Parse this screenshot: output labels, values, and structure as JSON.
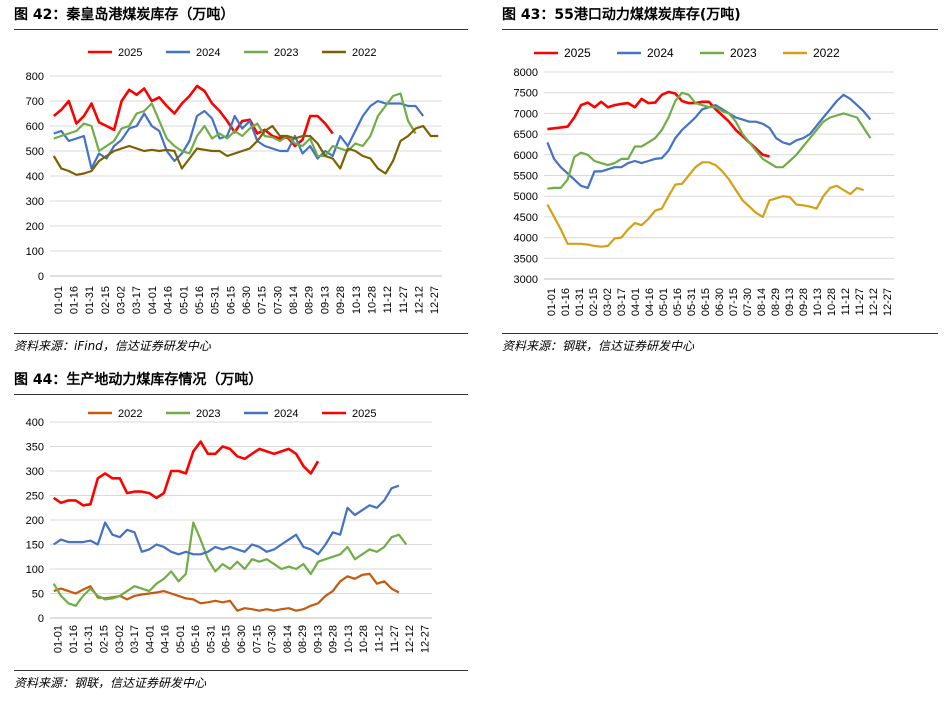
{
  "colors": {
    "2025": "#ff0000",
    "2024": "#4472c4",
    "2023": "#70ad47",
    "2022_p1": "#7f6000",
    "2022_p2": "#d4a017",
    "2022_p3": "#c55a11"
  },
  "panels": [
    {
      "title": "图 42：秦皇岛港煤炭库存（万吨）",
      "source": "资料来源：iFind，信达证券研发中心",
      "chart_data": {
        "type": "line",
        "x_ticks": [
          "01-01",
          "01-16",
          "01-31",
          "02-15",
          "03-02",
          "03-17",
          "04-01",
          "04-16",
          "05-01",
          "05-16",
          "05-31",
          "06-15",
          "06-30",
          "07-15",
          "07-30",
          "08-14",
          "08-29",
          "09-13",
          "09-28",
          "10-13",
          "10-28",
          "11-12",
          "11-27",
          "12-12",
          "12-27"
        ],
        "y_ticks": [
          "0",
          "100",
          "200",
          "300",
          "400",
          "500",
          "600",
          "700",
          "800"
        ],
        "ylim": [
          0,
          800
        ],
        "legend_position": "top",
        "series": [
          {
            "name": "2025",
            "color_key": "2025",
            "values": [
              640,
              665,
              700,
              610,
              640,
              690,
              615,
              600,
              585,
              700,
              745,
              725,
              750,
              700,
              715,
              680,
              650,
              690,
              720,
              760,
              740,
              690,
              660,
              620,
              575,
              620,
              625,
              570,
              585,
              560,
              550,
              555,
              520,
              545,
              640,
              640,
              610,
              570
            ]
          },
          {
            "name": "2024",
            "color_key": "2024",
            "values": [
              570,
              580,
              540,
              550,
              560,
              430,
              490,
              470,
              520,
              545,
              590,
              600,
              650,
              600,
              580,
              500,
              460,
              490,
              540,
              640,
              660,
              630,
              550,
              560,
              640,
              590,
              620,
              540,
              520,
              510,
              500,
              500,
              560,
              490,
              520,
              470,
              500,
              480,
              560,
              520,
              580,
              640,
              680,
              700,
              690,
              690,
              690,
              680,
              680,
              640
            ]
          },
          {
            "name": "2023",
            "color_key": "2023",
            "values": [
              550,
              560,
              570,
              580,
              610,
              600,
              500,
              520,
              540,
              590,
              600,
              650,
              660,
              690,
              620,
              550,
              520,
              500,
              490,
              560,
              600,
              550,
              570,
              550,
              580,
              560,
              590,
              610,
              560,
              555,
              540,
              560,
              530,
              520,
              550,
              480,
              480,
              520,
              510,
              500,
              530,
              520,
              560,
              640,
              680,
              720,
              730,
              620,
              570
            ]
          },
          {
            "name": "2022",
            "color_key": "2022_p1",
            "values": [
              480,
              430,
              420,
              405,
              410,
              420,
              460,
              480,
              500,
              510,
              520,
              510,
              500,
              505,
              500,
              505,
              500,
              430,
              470,
              510,
              505,
              500,
              500,
              480,
              490,
              500,
              510,
              540,
              580,
              600,
              560,
              560,
              550,
              560,
              560,
              530,
              480,
              470,
              430,
              510,
              500,
              480,
              470,
              430,
              410,
              460,
              540,
              560,
              590,
              600,
              560,
              560
            ]
          }
        ]
      }
    },
    {
      "title": "图 43：55港口动力煤煤炭库存(万吨)",
      "source": "资料来源：钢联，信达证券研发中心",
      "chart_data": {
        "type": "line",
        "x_ticks": [
          "01-01",
          "01-16",
          "01-31",
          "02-15",
          "03-02",
          "03-17",
          "04-01",
          "04-16",
          "05-01",
          "05-16",
          "05-31",
          "06-15",
          "06-30",
          "07-15",
          "07-30",
          "08-14",
          "08-29",
          "09-13",
          "09-28",
          "10-13",
          "10-28",
          "11-12",
          "11-27",
          "12-12",
          "12-27"
        ],
        "y_ticks": [
          "3000",
          "3500",
          "4000",
          "4500",
          "5000",
          "5500",
          "6000",
          "6500",
          "7000",
          "7500",
          "8000"
        ],
        "ylim": [
          3000,
          8000
        ],
        "legend_position": "top",
        "series": [
          {
            "name": "2025",
            "color_key": "2025",
            "values": [
              6620,
              6640,
              6660,
              6680,
              6900,
              7200,
              7260,
              7150,
              7280,
              7150,
              7200,
              7230,
              7250,
              7150,
              7350,
              7250,
              7260,
              7450,
              7520,
              7480,
              7300,
              7250,
              7250,
              7280,
              7280,
              7100,
              6950,
              6800,
              6600,
              6450,
              6300,
              6150,
              6000,
              5960
            ]
          },
          {
            "name": "2024",
            "color_key": "2024",
            "values": [
              6300,
              5900,
              5700,
              5550,
              5400,
              5250,
              5200,
              5600,
              5600,
              5650,
              5700,
              5700,
              5800,
              5850,
              5800,
              5850,
              5900,
              5920,
              6100,
              6400,
              6600,
              6750,
              6900,
              7100,
              7150,
              7200,
              7100,
              7000,
              6900,
              6850,
              6800,
              6800,
              6750,
              6650,
              6400,
              6300,
              6250,
              6350,
              6400,
              6500,
              6700,
              6900,
              7100,
              7300,
              7450,
              7350,
              7200,
              7050,
              6850
            ]
          },
          {
            "name": "2023",
            "color_key": "2023",
            "values": [
              5180,
              5200,
              5200,
              5400,
              5950,
              6050,
              6000,
              5850,
              5800,
              5750,
              5800,
              5900,
              5900,
              6200,
              6200,
              6300,
              6400,
              6600,
              6900,
              7300,
              7500,
              7450,
              7250,
              7200,
              7150,
              7150,
              7050,
              7000,
              6800,
              6500,
              6300,
              6100,
              5900,
              5800,
              5700,
              5700,
              5850,
              6000,
              6200,
              6400,
              6600,
              6800,
              6900,
              6950,
              7000,
              6950,
              6900,
              6650,
              6400
            ]
          },
          {
            "name": "2022",
            "color_key": "2022_p2",
            "values": [
              4800,
              4500,
              4200,
              3850,
              3850,
              3850,
              3830,
              3800,
              3780,
              3800,
              3980,
              4000,
              4200,
              4350,
              4300,
              4450,
              4650,
              4700,
              5000,
              5280,
              5300,
              5500,
              5700,
              5820,
              5820,
              5750,
              5600,
              5400,
              5150,
              4900,
              4750,
              4600,
              4500,
              4900,
              4950,
              5000,
              4980,
              4800,
              4780,
              4750,
              4700,
              5000,
              5200,
              5250,
              5150,
              5050,
              5200,
              5150
            ]
          }
        ]
      }
    },
    {
      "title": "图 44：生产地动力煤库存情况（万吨）",
      "source": "资料来源：钢联，信达证券研发中心",
      "chart_data": {
        "type": "line",
        "x_ticks": [
          "01-01",
          "01-16",
          "01-31",
          "02-15",
          "03-02",
          "03-17",
          "04-01",
          "04-16",
          "05-01",
          "05-16",
          "05-31",
          "06-15",
          "06-30",
          "07-15",
          "07-30",
          "08-14",
          "08-29",
          "09-13",
          "09-28",
          "10-13",
          "10-28",
          "11-12",
          "11-27",
          "12-12",
          "12-27"
        ],
        "y_ticks": [
          "0",
          "50",
          "100",
          "150",
          "200",
          "250",
          "300",
          "350",
          "400"
        ],
        "ylim": [
          0,
          400
        ],
        "legend_position": "top",
        "series": [
          {
            "name": "2022",
            "color_key": "2022_p3",
            "values": [
              55,
              60,
              55,
              50,
              58,
              65,
              42,
              40,
              42,
              45,
              38,
              45,
              48,
              50,
              52,
              55,
              50,
              45,
              40,
              38,
              30,
              32,
              35,
              32,
              35,
              15,
              20,
              18,
              15,
              18,
              15,
              18,
              20,
              15,
              18,
              25,
              30,
              45,
              55,
              75,
              85,
              80,
              88,
              90,
              70,
              75,
              60,
              52
            ]
          },
          {
            "name": "2023",
            "color_key": "2023",
            "values": [
              70,
              45,
              30,
              25,
              45,
              60,
              45,
              38,
              40,
              45,
              55,
              65,
              60,
              55,
              70,
              80,
              95,
              75,
              90,
              195,
              160,
              120,
              95,
              110,
              100,
              115,
              100,
              120,
              115,
              120,
              110,
              100,
              105,
              100,
              110,
              90,
              115,
              120,
              125,
              130,
              145,
              120,
              130,
              140,
              135,
              145,
              165,
              170,
              150
            ]
          },
          {
            "name": "2024",
            "color_key": "2024",
            "values": [
              150,
              160,
              155,
              155,
              155,
              158,
              150,
              195,
              170,
              165,
              180,
              175,
              135,
              140,
              150,
              145,
              135,
              130,
              135,
              130,
              130,
              135,
              145,
              140,
              145,
              140,
              135,
              150,
              145,
              135,
              140,
              150,
              160,
              170,
              145,
              140,
              130,
              150,
              175,
              170,
              225,
              210,
              220,
              230,
              225,
              240,
              265,
              270
            ]
          },
          {
            "name": "2025",
            "color_key": "2025",
            "values": [
              245,
              235,
              240,
              240,
              230,
              232,
              285,
              295,
              285,
              285,
              255,
              258,
              258,
              255,
              245,
              255,
              300,
              300,
              295,
              340,
              360,
              335,
              335,
              350,
              345,
              330,
              325,
              335,
              345,
              340,
              335,
              340,
              345,
              335,
              310,
              295,
              320
            ]
          }
        ]
      }
    }
  ]
}
